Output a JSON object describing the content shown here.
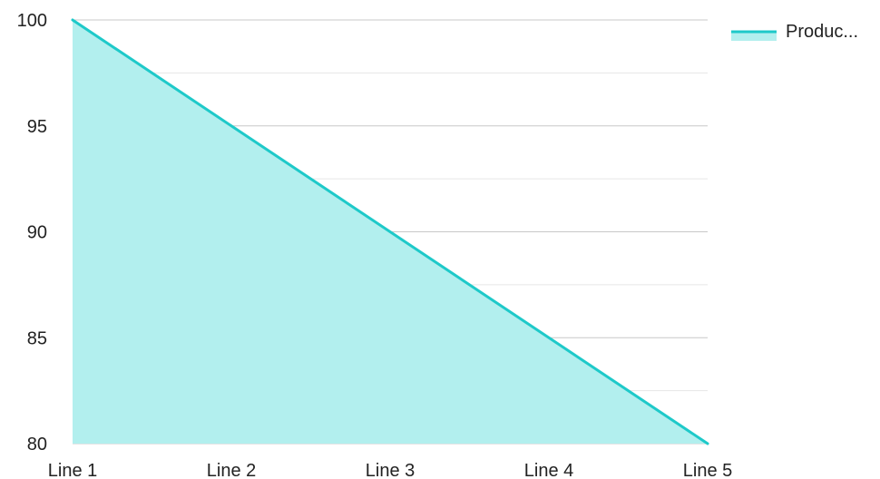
{
  "chart_data": {
    "type": "area",
    "categories": [
      "Line 1",
      "Line 2",
      "Line 3",
      "Line 4",
      "Line 5"
    ],
    "series": [
      {
        "name": "Produc...",
        "values": [
          100,
          95,
          90,
          85,
          80
        ]
      }
    ],
    "ylim": [
      80,
      100
    ],
    "yticks": [
      80,
      85,
      90,
      95,
      100
    ],
    "grid": true,
    "minor_grid": true,
    "legend": "top-right",
    "colors": {
      "line": "#1ec9c9",
      "fill": "#b2efee",
      "major_grid": "#c8c8c8",
      "minor_grid": "#e6e6e6",
      "text": "#222222"
    }
  }
}
